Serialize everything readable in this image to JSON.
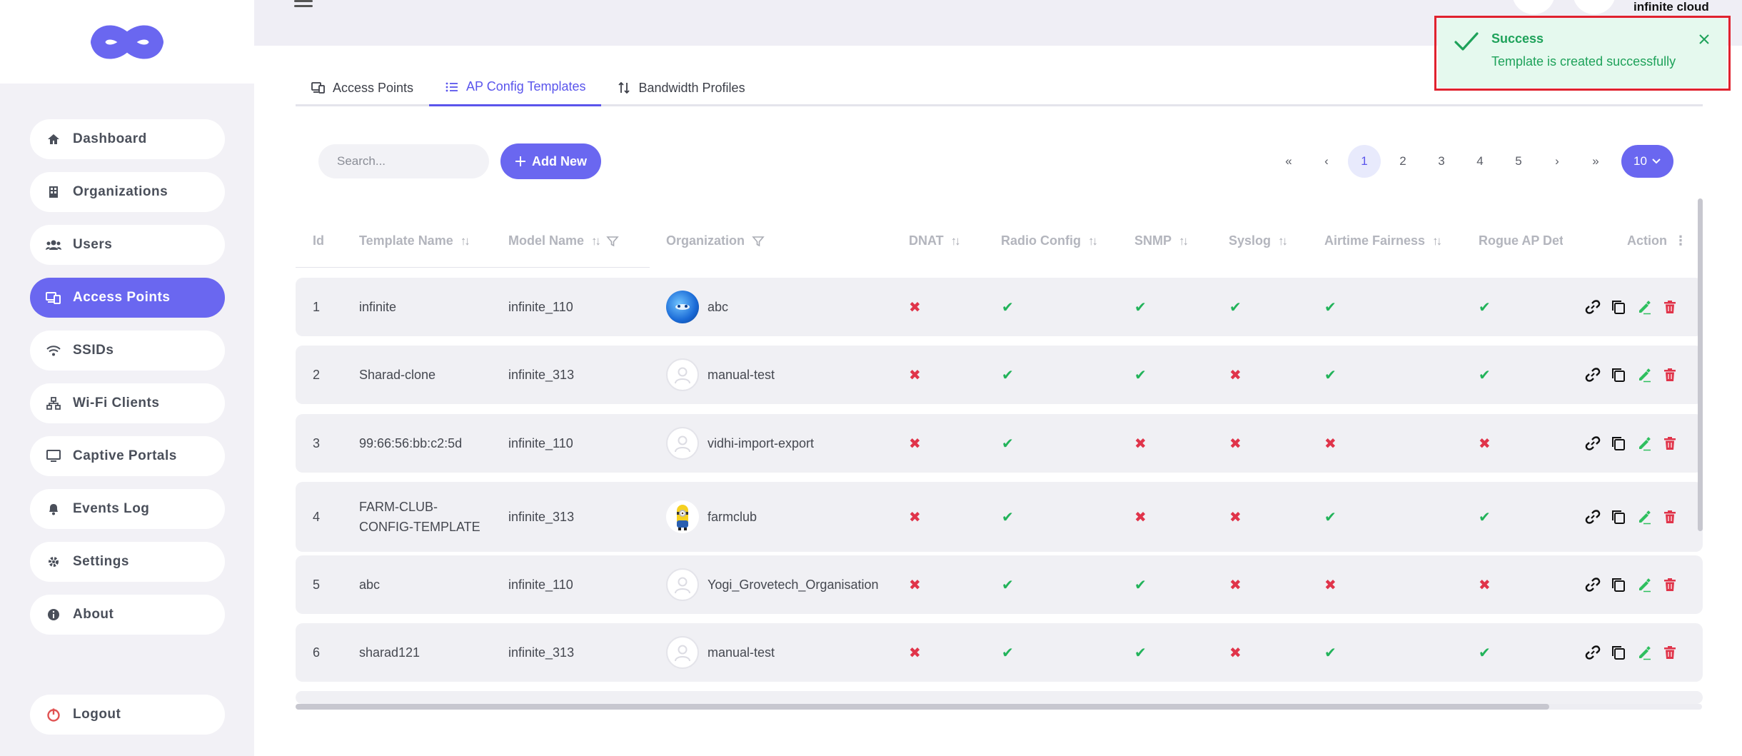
{
  "brand": {
    "name": "infinite cloud"
  },
  "nav": [
    {
      "key": "dashboard",
      "label": "Dashboard",
      "icon": "home-icon"
    },
    {
      "key": "organizations",
      "label": "Organizations",
      "icon": "building-icon"
    },
    {
      "key": "users",
      "label": "Users",
      "icon": "users-icon"
    },
    {
      "key": "access-points",
      "label": "Access Points",
      "icon": "devices-icon",
      "active": true
    },
    {
      "key": "ssids",
      "label": "SSIDs",
      "icon": "wifi-icon"
    },
    {
      "key": "wifi-clients",
      "label": "Wi-Fi Clients",
      "icon": "network-icon"
    },
    {
      "key": "captive-portals",
      "label": "Captive Portals",
      "icon": "monitor-icon"
    },
    {
      "key": "events-log",
      "label": "Events Log",
      "icon": "bell-icon"
    },
    {
      "key": "settings",
      "label": "Settings",
      "icon": "gear-icon"
    },
    {
      "key": "about",
      "label": "About",
      "icon": "info-icon"
    }
  ],
  "logout": {
    "label": "Logout",
    "icon": "power-icon"
  },
  "tabs": [
    {
      "label": "Access Points",
      "icon": "devices-icon"
    },
    {
      "label": "AP Config Templates",
      "icon": "list-icon",
      "active": true
    },
    {
      "label": "Bandwidth Profiles",
      "icon": "sort-arrows-icon"
    }
  ],
  "toolbar": {
    "search_placeholder": "Search...",
    "add_label": "Add New"
  },
  "pagination": {
    "first": "«",
    "prev": "‹",
    "pages": [
      "1",
      "2",
      "3",
      "4",
      "5"
    ],
    "current": "1",
    "next": "›",
    "last": "»",
    "page_size": "10"
  },
  "table": {
    "headers": {
      "id": "Id",
      "template_name": "Template Name",
      "model_name": "Model Name",
      "organization": "Organization",
      "dnat": "DNAT",
      "radio_config": "Radio Config",
      "snmp": "SNMP",
      "syslog": "Syslog",
      "airtime": "Airtime Fairness",
      "rogue": "Rogue AP Dete",
      "action": "Action"
    },
    "rows": [
      {
        "id": "1",
        "name": "infinite",
        "model": "infinite_110",
        "org": "abc",
        "avatar": "earth",
        "dnat": false,
        "radio": true,
        "snmp": true,
        "syslog": true,
        "airtime": true,
        "rogue": true
      },
      {
        "id": "2",
        "name": "Sharad-clone",
        "model": "infinite_313",
        "org": "manual-test",
        "avatar": "default",
        "dnat": false,
        "radio": true,
        "snmp": true,
        "syslog": false,
        "airtime": true,
        "rogue": true
      },
      {
        "id": "3",
        "name": "99:66:56:bb:c2:5d",
        "model": "infinite_110",
        "org": "vidhi-import-export",
        "avatar": "default",
        "dnat": false,
        "radio": true,
        "snmp": false,
        "syslog": false,
        "airtime": false,
        "rogue": false
      },
      {
        "id": "4",
        "name": "FARM-CLUB-",
        "name2": "CONFIG-TEMPLATE",
        "model": "infinite_313",
        "org": "farmclub",
        "avatar": "minion",
        "dnat": false,
        "radio": true,
        "snmp": false,
        "syslog": false,
        "airtime": true,
        "rogue": true
      },
      {
        "id": "5",
        "name": "abc",
        "model": "infinite_110",
        "org": "Yogi_Grovetech_Organisation",
        "avatar": "default",
        "dnat": false,
        "radio": true,
        "snmp": true,
        "syslog": false,
        "airtime": false,
        "rogue": false
      },
      {
        "id": "6",
        "name": "sharad121",
        "model": "infinite_313",
        "org": "manual-test",
        "avatar": "default",
        "dnat": false,
        "radio": true,
        "snmp": true,
        "syslog": false,
        "airtime": true,
        "rogue": true
      }
    ],
    "marks": {
      "yes": "✔",
      "no": "✖"
    },
    "colors": {
      "yes": "#22b35a",
      "no": "#e0344a",
      "edit": "#2fbf5f",
      "delete": "#e0344a"
    }
  },
  "toast": {
    "title": "Success",
    "message": "Template is created successfully",
    "color": "#1ea25a"
  },
  "colors": {
    "accent": "#6a67f0"
  }
}
